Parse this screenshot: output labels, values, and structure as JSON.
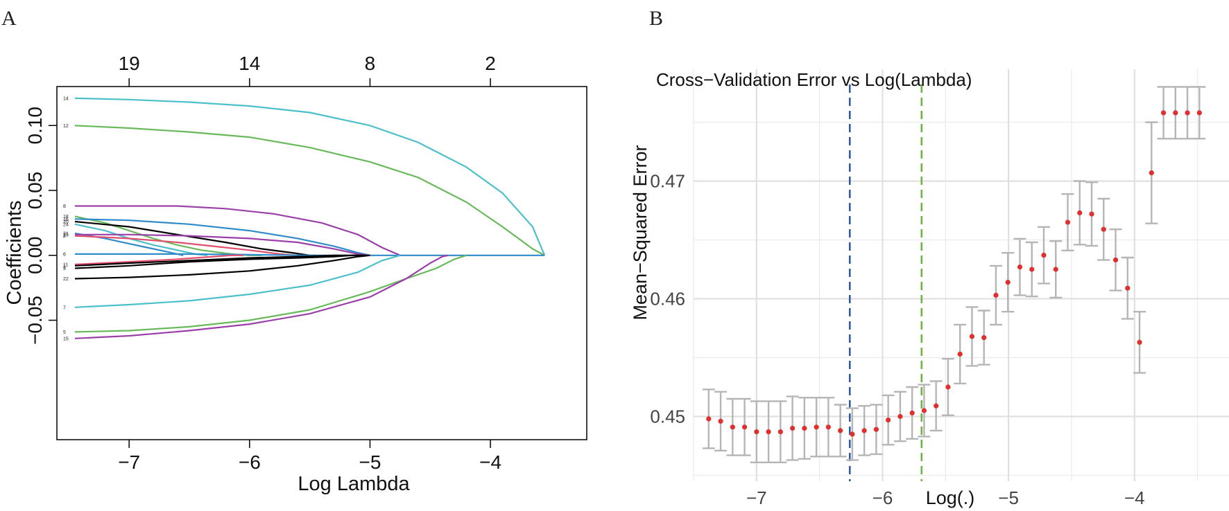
{
  "chart_data": [
    {
      "panel": "A",
      "type": "line",
      "title": "",
      "xlabel": "Log Lambda",
      "ylabel": "Coefficients",
      "xlim": [
        -7.6,
        -3.2
      ],
      "ylim": [
        -0.142,
        0.13
      ],
      "xticks": [
        -7,
        -6,
        -5,
        -4
      ],
      "xtick_labels": [
        "−7",
        "−6",
        "−5",
        "−4"
      ],
      "yticks": [
        -0.05,
        0.0,
        0.05,
        0.1
      ],
      "ytick_labels": [
        "−0.05",
        "0.00",
        "0.05",
        "0.10"
      ],
      "top_axis": {
        "ticks": [
          -7.0,
          -6.0,
          -5.0,
          -4.0
        ],
        "labels": [
          "19",
          "14",
          "8",
          "2"
        ]
      },
      "series": [
        {
          "name": "14",
          "color": "#4BBFCA",
          "x": [
            -7.45,
            -7.0,
            -6.5,
            -6.0,
            -5.5,
            -5.0,
            -4.6,
            -4.2,
            -3.9,
            -3.65,
            -3.55
          ],
          "y": [
            0.121,
            0.12,
            0.118,
            0.115,
            0.11,
            0.1,
            0.087,
            0.068,
            0.048,
            0.022,
            0.0
          ]
        },
        {
          "name": "12",
          "color": "#67B95A",
          "x": [
            -7.45,
            -7.0,
            -6.5,
            -6.0,
            -5.5,
            -5.0,
            -4.6,
            -4.2,
            -3.9,
            -3.65,
            -3.55
          ],
          "y": [
            0.1,
            0.098,
            0.095,
            0.091,
            0.083,
            0.072,
            0.06,
            0.041,
            0.022,
            0.005,
            0.0
          ]
        },
        {
          "name": "8",
          "color": "#9A3FA8",
          "x": [
            -7.45,
            -7.0,
            -6.6,
            -6.2,
            -5.8,
            -5.4,
            -5.1,
            -4.9,
            -4.75
          ],
          "y": [
            0.038,
            0.038,
            0.038,
            0.036,
            0.032,
            0.025,
            0.016,
            0.006,
            0.0
          ]
        },
        {
          "name": "18",
          "color": "#67B95A",
          "x": [
            -7.45,
            -7.2,
            -7.0,
            -6.8,
            -6.6,
            -6.4,
            -6.15,
            -6.0,
            -5.9
          ],
          "y": [
            0.03,
            0.025,
            0.019,
            0.013,
            0.008,
            0.004,
            0.001,
            0.0,
            0.0
          ]
        },
        {
          "name": "16",
          "color": "#2F8BC9",
          "x": [
            -7.45,
            -7.0,
            -6.5,
            -6.0,
            -5.6,
            -5.3,
            -5.1,
            -5.0
          ],
          "y": [
            0.028,
            0.027,
            0.024,
            0.019,
            0.013,
            0.007,
            0.002,
            0.0
          ]
        },
        {
          "name": "20",
          "color": "#000000",
          "x": [
            -7.45,
            -7.0,
            -6.6,
            -6.2,
            -5.9,
            -5.65,
            -5.5,
            -5.45
          ],
          "y": [
            0.026,
            0.022,
            0.016,
            0.01,
            0.005,
            0.002,
            0.0,
            0.0
          ]
        },
        {
          "name": "24",
          "color": "#4BBFCA",
          "x": [
            -7.45,
            -7.2,
            -7.0,
            -6.8,
            -6.6,
            -6.45,
            -6.35
          ],
          "y": [
            0.024,
            0.019,
            0.013,
            0.008,
            0.004,
            0.001,
            0.0
          ]
        },
        {
          "name": "21",
          "color": "#2F8BC9",
          "x": [
            -7.45,
            -7.2,
            -7.0,
            -6.85,
            -6.7,
            -6.6,
            -6.55
          ],
          "y": [
            0.017,
            0.013,
            0.009,
            0.006,
            0.003,
            0.001,
            0.0
          ]
        },
        {
          "name": "23",
          "color": "#9A3FA8",
          "x": [
            -7.45,
            -7.0,
            -6.5,
            -6.0,
            -5.6,
            -5.3,
            -5.1,
            -5.0
          ],
          "y": [
            0.016,
            0.016,
            0.015,
            0.013,
            0.01,
            0.005,
            0.001,
            0.0
          ]
        },
        {
          "name": "2",
          "color": "#E0506E",
          "x": [
            -7.45,
            -7.0,
            -6.6,
            -6.3,
            -6.0,
            -5.75,
            -5.6
          ],
          "y": [
            0.015,
            0.013,
            0.01,
            0.007,
            0.004,
            0.001,
            0.0
          ]
        },
        {
          "name": "6",
          "color": "#2F8BC9",
          "x": [
            -7.45,
            -6.5,
            -5.5,
            -4.5,
            -3.55
          ],
          "y": [
            0.001,
            0.001,
            0.0,
            0.0,
            0.0
          ]
        },
        {
          "name": "11",
          "color": "#E0506E",
          "x": [
            -7.45,
            -7.0,
            -6.6,
            -6.3,
            -6.15,
            -6.05
          ],
          "y": [
            -0.007,
            -0.005,
            -0.003,
            -0.001,
            0.0,
            0.0
          ]
        },
        {
          "name": "1",
          "color": "#000000",
          "x": [
            -7.45,
            -7.0,
            -6.5,
            -6.0,
            -5.6,
            -5.3,
            -5.1,
            -5.0
          ],
          "y": [
            -0.008,
            -0.006,
            -0.004,
            -0.002,
            -0.001,
            0.0,
            0.0,
            0.0
          ]
        },
        {
          "name": "9",
          "color": "#000000",
          "x": [
            -7.45,
            -7.0,
            -6.5,
            -6.0,
            -5.6,
            -5.3,
            -5.15,
            -5.05
          ],
          "y": [
            -0.01,
            -0.008,
            -0.005,
            -0.003,
            -0.002,
            -0.001,
            0.0,
            0.0
          ]
        },
        {
          "name": "22",
          "color": "#000000",
          "x": [
            -7.45,
            -7.0,
            -6.5,
            -6.0,
            -5.6,
            -5.3,
            -5.1,
            -5.0
          ],
          "y": [
            -0.018,
            -0.017,
            -0.015,
            -0.012,
            -0.008,
            -0.004,
            -0.001,
            0.0
          ]
        },
        {
          "name": "7",
          "color": "#4BBFCA",
          "x": [
            -7.45,
            -7.0,
            -6.5,
            -6.0,
            -5.5,
            -5.1,
            -4.9,
            -4.75
          ],
          "y": [
            -0.04,
            -0.038,
            -0.035,
            -0.03,
            -0.023,
            -0.013,
            -0.004,
            0.0
          ]
        },
        {
          "name": "5",
          "color": "#67B95A",
          "x": [
            -7.45,
            -7.0,
            -6.5,
            -6.0,
            -5.5,
            -5.0,
            -4.7,
            -4.45,
            -4.3,
            -4.2
          ],
          "y": [
            -0.059,
            -0.058,
            -0.055,
            -0.05,
            -0.042,
            -0.028,
            -0.018,
            -0.01,
            -0.003,
            0.0
          ]
        },
        {
          "name": "15",
          "color": "#9A3FA8",
          "x": [
            -7.45,
            -7.0,
            -6.5,
            -6.0,
            -5.5,
            -5.0,
            -4.7,
            -4.5,
            -4.4,
            -4.35
          ],
          "y": [
            -0.064,
            -0.062,
            -0.058,
            -0.053,
            -0.045,
            -0.032,
            -0.018,
            -0.006,
            -0.001,
            0.0
          ]
        }
      ]
    },
    {
      "panel": "B",
      "type": "scatter",
      "title": "Cross−Validation Error vs Log(Lambda)",
      "xlabel": "Log(.)",
      "ylabel": "Mean−Squared Error",
      "xlim": [
        -7.5,
        -3.25
      ],
      "ylim": [
        0.4445,
        0.4795
      ],
      "xticks": [
        -7,
        -6,
        -5,
        -4
      ],
      "xtick_labels": [
        "−7",
        "−6",
        "−5",
        "−4"
      ],
      "yticks": [
        0.45,
        0.46,
        0.47
      ],
      "ytick_labels": [
        "0.45",
        "0.46",
        "0.47"
      ],
      "vlines": [
        {
          "x": -6.26,
          "color": "#2E5C9A",
          "style": "dashed"
        },
        {
          "x": -5.69,
          "color": "#6DB33F",
          "style": "dashed"
        }
      ],
      "points": {
        "x": [
          -7.38,
          -7.285,
          -7.19,
          -7.095,
          -7.0,
          -6.905,
          -6.81,
          -6.715,
          -6.62,
          -6.525,
          -6.43,
          -6.335,
          -6.24,
          -6.145,
          -6.05,
          -5.955,
          -5.86,
          -5.765,
          -5.67,
          -5.575,
          -5.48,
          -5.385,
          -5.29,
          -5.195,
          -5.1,
          -5.005,
          -4.91,
          -4.815,
          -4.72,
          -4.625,
          -4.53,
          -4.435,
          -4.34,
          -4.245,
          -4.15,
          -4.055,
          -3.96,
          -3.865,
          -3.77,
          -3.675,
          -3.58,
          -3.485
        ],
        "y": [
          0.4498,
          0.4496,
          0.4491,
          0.4491,
          0.4487,
          0.4487,
          0.4487,
          0.449,
          0.449,
          0.4491,
          0.4491,
          0.4488,
          0.4485,
          0.4488,
          0.4489,
          0.4497,
          0.45,
          0.4503,
          0.4505,
          0.4509,
          0.4525,
          0.4553,
          0.4568,
          0.4567,
          0.4603,
          0.4614,
          0.4627,
          0.4625,
          0.4637,
          0.4625,
          0.4665,
          0.4673,
          0.4672,
          0.4659,
          0.4633,
          0.4609,
          0.4563,
          0.4707,
          0.4758,
          0.4758,
          0.4758,
          0.4758
        ],
        "err": [
          0.0025,
          0.0025,
          0.0024,
          0.0024,
          0.0026,
          0.0026,
          0.0026,
          0.0027,
          0.0026,
          0.0025,
          0.0025,
          0.0022,
          0.0022,
          0.0021,
          0.0021,
          0.0021,
          0.0021,
          0.0022,
          0.0022,
          0.0021,
          0.0024,
          0.0025,
          0.0025,
          0.0023,
          0.0025,
          0.0025,
          0.0024,
          0.0023,
          0.0024,
          0.0024,
          0.0024,
          0.0027,
          0.0027,
          0.0026,
          0.0026,
          0.0026,
          0.0026,
          0.0043,
          0.0022,
          0.0022,
          0.0022,
          0.0022
        ]
      },
      "point_color": "#E02F2F",
      "errorbar_color": "#B5B5B5",
      "grid": true
    }
  ],
  "labels": {
    "panel_a": "A",
    "panel_b": "B"
  }
}
